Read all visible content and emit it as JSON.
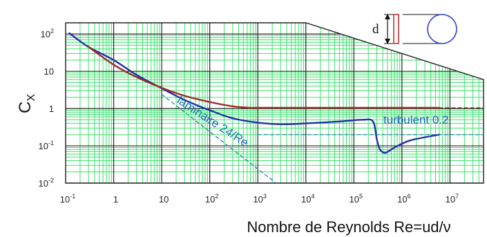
{
  "chart_data": {
    "type": "line",
    "xlabel": "Nombre de Reynolds Re=ud/ν",
    "ylabel_main": "C",
    "ylabel_sub": "X",
    "x_scale": "log",
    "y_scale": "log",
    "xlim": [
      0.1,
      50000000
    ],
    "ylim": [
      0.01,
      200
    ],
    "grid": true,
    "x_ticks": [
      {
        "value": 0.1,
        "base": "10",
        "exp": "-1"
      },
      {
        "value": 1,
        "base": "1",
        "exp": ""
      },
      {
        "value": 10,
        "base": "10",
        "exp": ""
      },
      {
        "value": 100,
        "base": "10",
        "exp": "2"
      },
      {
        "value": 1000,
        "base": "10",
        "exp": "3"
      },
      {
        "value": 10000,
        "base": "10",
        "exp": "4"
      },
      {
        "value": 100000,
        "base": "10",
        "exp": "5"
      },
      {
        "value": 1000000,
        "base": "10",
        "exp": "6"
      },
      {
        "value": 10000000,
        "base": "10",
        "exp": "7"
      }
    ],
    "y_ticks": [
      {
        "value": 100,
        "base": "10",
        "exp": "2"
      },
      {
        "value": 10,
        "base": "10",
        "exp": ""
      },
      {
        "value": 1,
        "base": "1",
        "exp": ""
      },
      {
        "value": 0.1,
        "base": "10",
        "exp": "-1"
      },
      {
        "value": 0.01,
        "base": "10",
        "exp": "-2"
      }
    ],
    "series": [
      {
        "key": "blue",
        "color": "#1f2fa8",
        "points": [
          [
            0.12,
            105
          ],
          [
            0.3,
            45
          ],
          [
            1,
            20
          ],
          [
            3,
            8
          ],
          [
            10,
            3.5
          ],
          [
            30,
            1.7
          ],
          [
            100,
            0.9
          ],
          [
            300,
            0.55
          ],
          [
            1000,
            0.42
          ],
          [
            3000,
            0.38
          ],
          [
            10000,
            0.4
          ],
          [
            50000,
            0.45
          ],
          [
            150000,
            0.5
          ],
          [
            250000,
            0.45
          ],
          [
            300000,
            0.15
          ],
          [
            350000,
            0.08
          ],
          [
            450000,
            0.065
          ],
          [
            700000,
            0.09
          ],
          [
            1500000,
            0.14
          ],
          [
            6000000,
            0.2
          ]
        ]
      },
      {
        "key": "red",
        "color": "#a3262a",
        "points": [
          [
            0.3,
            45
          ],
          [
            1,
            15
          ],
          [
            3,
            7
          ],
          [
            10,
            3.6
          ],
          [
            30,
            2.2
          ],
          [
            100,
            1.5
          ],
          [
            300,
            1.15
          ],
          [
            700,
            1.05
          ],
          [
            1000,
            1.05
          ],
          [
            100000,
            1.05
          ],
          [
            6000000,
            1.05
          ]
        ]
      },
      {
        "key": "red-dashed",
        "color": "#a3262a",
        "dashed": true,
        "points": [
          [
            6000000,
            1.05
          ],
          [
            50000000,
            1.05
          ]
        ]
      },
      {
        "key": "laminar-24-over-Re",
        "color": "#2573b8",
        "dashed": true,
        "points": [
          [
            10,
            2.4
          ],
          [
            10000,
            0.0024
          ]
        ]
      },
      {
        "key": "turbulent-0.2",
        "color": "#2573b8",
        "dashed": true,
        "points": [
          [
            1000,
            0.2
          ],
          [
            50000000,
            0.2
          ]
        ]
      }
    ],
    "annotations": [
      {
        "key": "laminaire",
        "text": "laminaire  24/Re",
        "color": "#2573b8"
      },
      {
        "key": "turbulent",
        "text": "turbulent 0.2",
        "color": "#2573b8"
      }
    ],
    "inset": {
      "label": "d",
      "plate_color": "#c43131",
      "cylinder_color": "#2c3bd6"
    },
    "colors": {
      "grid_major": "#222222",
      "grid_minor": "#39e36a",
      "boundary": "#222222"
    }
  }
}
